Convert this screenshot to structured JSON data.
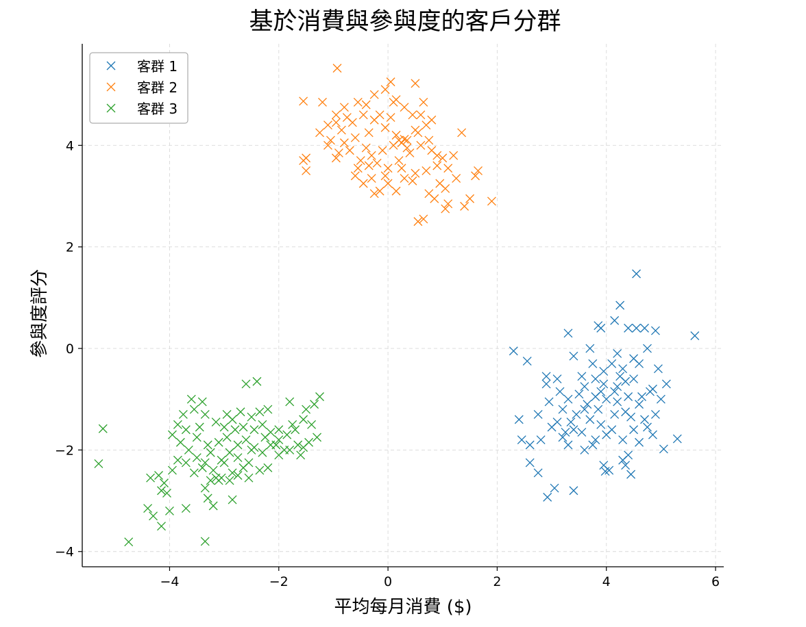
{
  "chart_data": {
    "type": "scatter",
    "title": "基於消費與參與度的客戶分群",
    "xlabel": "平均每月消費 ($)",
    "ylabel": "參與度評分",
    "xlim": [
      -5.6,
      6.15
    ],
    "ylim": [
      -4.3,
      6.0
    ],
    "xticks": [
      -4,
      -2,
      0,
      2,
      4,
      6
    ],
    "yticks": [
      -4,
      -2,
      0,
      2,
      4
    ],
    "grid": true,
    "marker": "x",
    "legend_position": "top-left",
    "series": [
      {
        "name": "客群 1",
        "color": "#1f77b4",
        "points": [
          [
            4.55,
            1.47
          ],
          [
            4.25,
            0.85
          ],
          [
            5.62,
            0.25
          ],
          [
            3.3,
            0.3
          ],
          [
            2.3,
            -0.05
          ],
          [
            2.55,
            -0.25
          ],
          [
            3.1,
            -0.6
          ],
          [
            2.9,
            -0.55
          ],
          [
            3.4,
            -0.15
          ],
          [
            3.7,
            0.0
          ],
          [
            3.9,
            0.4
          ],
          [
            4.15,
            0.55
          ],
          [
            4.4,
            0.4
          ],
          [
            4.7,
            0.4
          ],
          [
            4.9,
            0.35
          ],
          [
            4.75,
            0.0
          ],
          [
            4.5,
            -0.2
          ],
          [
            4.3,
            -0.4
          ],
          [
            4.1,
            -0.3
          ],
          [
            3.95,
            -0.45
          ],
          [
            3.8,
            -0.6
          ],
          [
            3.6,
            -0.75
          ],
          [
            3.5,
            -0.9
          ],
          [
            3.3,
            -1.0
          ],
          [
            3.2,
            -1.2
          ],
          [
            3.45,
            -1.3
          ],
          [
            3.7,
            -1.4
          ],
          [
            3.9,
            -1.5
          ],
          [
            4.1,
            -1.6
          ],
          [
            4.3,
            -1.8
          ],
          [
            4.5,
            -1.6
          ],
          [
            4.7,
            -1.4
          ],
          [
            4.9,
            -1.3
          ],
          [
            5.0,
            -1.0
          ],
          [
            5.1,
            -0.7
          ],
          [
            4.95,
            -0.4
          ],
          [
            4.8,
            -0.85
          ],
          [
            4.6,
            -1.1
          ],
          [
            4.4,
            -0.95
          ],
          [
            4.2,
            -0.75
          ],
          [
            4.0,
            -1.0
          ],
          [
            3.85,
            -1.2
          ],
          [
            3.65,
            -1.1
          ],
          [
            3.4,
            -1.6
          ],
          [
            3.2,
            -1.75
          ],
          [
            3.0,
            -1.55
          ],
          [
            2.8,
            -1.8
          ],
          [
            2.6,
            -1.9
          ],
          [
            2.45,
            -1.8
          ],
          [
            2.4,
            -1.4
          ],
          [
            2.75,
            -1.3
          ],
          [
            2.95,
            -1.05
          ],
          [
            3.15,
            -0.85
          ],
          [
            2.9,
            -0.7
          ],
          [
            2.6,
            -2.25
          ],
          [
            2.75,
            -2.45
          ],
          [
            3.05,
            -2.75
          ],
          [
            2.92,
            -2.93
          ],
          [
            3.4,
            -2.8
          ],
          [
            3.6,
            -2.0
          ],
          [
            3.8,
            -1.8
          ],
          [
            4.0,
            -1.7
          ],
          [
            3.95,
            -2.3
          ],
          [
            4.05,
            -2.4
          ],
          [
            3.98,
            -2.42
          ],
          [
            4.3,
            -2.2
          ],
          [
            4.35,
            -2.3
          ],
          [
            4.45,
            -2.48
          ],
          [
            4.4,
            -2.1
          ],
          [
            4.6,
            -1.85
          ],
          [
            4.85,
            -1.7
          ],
          [
            5.05,
            -1.98
          ],
          [
            5.3,
            -1.78
          ],
          [
            4.65,
            -0.95
          ],
          [
            4.5,
            -0.6
          ],
          [
            4.25,
            -0.55
          ],
          [
            4.2,
            -0.1
          ],
          [
            3.75,
            -0.3
          ],
          [
            3.55,
            -0.55
          ],
          [
            3.35,
            -1.45
          ],
          [
            3.55,
            -1.65
          ],
          [
            3.75,
            -1.9
          ],
          [
            4.15,
            -1.3
          ],
          [
            4.2,
            -1.05
          ],
          [
            4.6,
            -0.3
          ],
          [
            4.35,
            -0.65
          ],
          [
            3.9,
            -0.85
          ],
          [
            3.6,
            -1.2
          ],
          [
            3.8,
            -0.95
          ],
          [
            4.45,
            -1.35
          ],
          [
            4.75,
            -1.55
          ],
          [
            4.85,
            -0.8
          ],
          [
            3.25,
            -1.65
          ],
          [
            3.1,
            -1.45
          ],
          [
            3.3,
            -1.9
          ],
          [
            3.85,
            0.45
          ],
          [
            4.35,
            -1.25
          ],
          [
            4.15,
            -0.85
          ],
          [
            3.95,
            -0.7
          ],
          [
            4.55,
            0.4
          ]
        ]
      },
      {
        "name": "客群 2",
        "color": "#ff7f0e",
        "points": [
          [
            -0.93,
            5.52
          ],
          [
            -1.55,
            4.87
          ],
          [
            -1.2,
            4.85
          ],
          [
            0.5,
            5.22
          ],
          [
            0.05,
            5.25
          ],
          [
            -0.05,
            5.1
          ],
          [
            -0.25,
            5.0
          ],
          [
            -0.55,
            4.85
          ],
          [
            -0.8,
            4.75
          ],
          [
            -0.95,
            4.6
          ],
          [
            -1.1,
            4.4
          ],
          [
            -1.25,
            4.25
          ],
          [
            -1.05,
            4.1
          ],
          [
            -0.85,
            4.3
          ],
          [
            -0.65,
            4.45
          ],
          [
            -0.45,
            4.6
          ],
          [
            -0.25,
            4.5
          ],
          [
            -0.05,
            4.35
          ],
          [
            0.15,
            4.2
          ],
          [
            0.35,
            4.1
          ],
          [
            0.55,
            4.25
          ],
          [
            0.7,
            4.4
          ],
          [
            0.6,
            4.6
          ],
          [
            0.3,
            4.75
          ],
          [
            0.1,
            4.85
          ],
          [
            0.65,
            4.85
          ],
          [
            0.2,
            4.1
          ],
          [
            0.25,
            4.05
          ],
          [
            0.3,
            4.12
          ],
          [
            0.1,
            4.0
          ],
          [
            -0.1,
            3.9
          ],
          [
            -0.3,
            3.8
          ],
          [
            -0.5,
            3.7
          ],
          [
            -0.7,
            3.9
          ],
          [
            -0.9,
            3.85
          ],
          [
            -0.95,
            3.75
          ],
          [
            -1.1,
            4.0
          ],
          [
            -1.55,
            3.7
          ],
          [
            -1.5,
            3.75
          ],
          [
            -1.5,
            3.5
          ],
          [
            -0.6,
            3.4
          ],
          [
            -0.45,
            3.25
          ],
          [
            -0.3,
            3.35
          ],
          [
            -0.15,
            3.1
          ],
          [
            -0.25,
            3.05
          ],
          [
            0.0,
            3.25
          ],
          [
            0.15,
            3.1
          ],
          [
            0.3,
            3.35
          ],
          [
            0.5,
            3.45
          ],
          [
            0.7,
            3.5
          ],
          [
            0.9,
            3.6
          ],
          [
            1.1,
            3.55
          ],
          [
            1.25,
            3.35
          ],
          [
            0.95,
            3.25
          ],
          [
            0.75,
            3.05
          ],
          [
            0.85,
            2.95
          ],
          [
            0.65,
            2.55
          ],
          [
            0.55,
            2.5
          ],
          [
            1.05,
            2.75
          ],
          [
            1.1,
            2.85
          ],
          [
            1.4,
            2.8
          ],
          [
            1.5,
            2.95
          ],
          [
            1.6,
            3.4
          ],
          [
            1.65,
            3.5
          ],
          [
            1.9,
            2.9
          ],
          [
            1.35,
            4.25
          ],
          [
            1.2,
            3.8
          ],
          [
            1.0,
            3.75
          ],
          [
            0.8,
            3.9
          ],
          [
            0.6,
            4.0
          ],
          [
            0.4,
            3.85
          ],
          [
            0.2,
            3.7
          ],
          [
            0.0,
            3.55
          ],
          [
            -0.2,
            3.65
          ],
          [
            -0.4,
            3.95
          ],
          [
            -0.6,
            4.15
          ],
          [
            -0.75,
            4.55
          ],
          [
            -0.35,
            4.25
          ],
          [
            -0.15,
            4.6
          ],
          [
            0.05,
            4.55
          ],
          [
            0.45,
            4.6
          ],
          [
            0.5,
            4.3
          ],
          [
            0.75,
            4.1
          ],
          [
            0.9,
            3.8
          ],
          [
            1.05,
            3.15
          ],
          [
            0.45,
            3.3
          ],
          [
            0.25,
            3.55
          ],
          [
            -0.05,
            3.4
          ],
          [
            -0.35,
            3.6
          ],
          [
            -0.55,
            3.55
          ],
          [
            -0.8,
            4.05
          ],
          [
            -0.95,
            4.45
          ],
          [
            0.15,
            4.9
          ],
          [
            -0.4,
            4.8
          ],
          [
            0.35,
            3.95
          ],
          [
            0.8,
            4.5
          ]
        ]
      },
      {
        "name": "客群 3",
        "color": "#2ca02c",
        "points": [
          [
            -5.22,
            -1.58
          ],
          [
            -5.3,
            -2.27
          ],
          [
            -4.75,
            -3.81
          ],
          [
            -3.35,
            -3.8
          ],
          [
            -4.15,
            -3.5
          ],
          [
            -4.3,
            -3.3
          ],
          [
            -4.4,
            -3.15
          ],
          [
            -4.0,
            -3.2
          ],
          [
            -3.7,
            -3.15
          ],
          [
            -3.2,
            -3.1
          ],
          [
            -3.3,
            -2.95
          ],
          [
            -2.85,
            -2.98
          ],
          [
            -3.35,
            -2.75
          ],
          [
            -3.1,
            -2.6
          ],
          [
            -3.05,
            -2.55
          ],
          [
            -2.9,
            -2.6
          ],
          [
            -2.75,
            -2.5
          ],
          [
            -2.55,
            -2.55
          ],
          [
            -2.35,
            -2.4
          ],
          [
            -2.2,
            -2.35
          ],
          [
            -2.0,
            -2.1
          ],
          [
            -1.8,
            -2.0
          ],
          [
            -1.65,
            -1.9
          ],
          [
            -1.45,
            -1.85
          ],
          [
            -1.3,
            -1.75
          ],
          [
            -1.4,
            -1.5
          ],
          [
            -1.55,
            -1.4
          ],
          [
            -1.75,
            -1.5
          ],
          [
            -2.0,
            -1.6
          ],
          [
            -2.15,
            -1.65
          ],
          [
            -2.3,
            -1.5
          ],
          [
            -2.5,
            -1.35
          ],
          [
            -2.7,
            -1.25
          ],
          [
            -2.85,
            -1.4
          ],
          [
            -3.0,
            -1.55
          ],
          [
            -3.15,
            -1.45
          ],
          [
            -3.35,
            -1.3
          ],
          [
            -3.55,
            -1.2
          ],
          [
            -3.75,
            -1.3
          ],
          [
            -3.85,
            -1.5
          ],
          [
            -3.95,
            -1.7
          ],
          [
            -3.8,
            -1.85
          ],
          [
            -3.65,
            -2.0
          ],
          [
            -3.5,
            -2.15
          ],
          [
            -3.35,
            -2.25
          ],
          [
            -3.2,
            -2.4
          ],
          [
            -3.05,
            -2.2
          ],
          [
            -2.9,
            -2.05
          ],
          [
            -2.75,
            -1.9
          ],
          [
            -2.6,
            -1.8
          ],
          [
            -2.45,
            -1.95
          ],
          [
            -2.3,
            -2.05
          ],
          [
            -2.15,
            -1.9
          ],
          [
            -2.0,
            -1.8
          ],
          [
            -1.85,
            -1.7
          ],
          [
            -1.7,
            -1.6
          ],
          [
            -1.5,
            -1.2
          ],
          [
            -1.35,
            -1.1
          ],
          [
            -1.25,
            -0.95
          ],
          [
            -1.8,
            -1.05
          ],
          [
            -2.2,
            -1.2
          ],
          [
            -2.6,
            -0.7
          ],
          [
            -2.4,
            -0.65
          ],
          [
            -3.6,
            -1.0
          ],
          [
            -3.4,
            -1.05
          ],
          [
            -4.2,
            -2.5
          ],
          [
            -4.35,
            -2.55
          ],
          [
            -4.15,
            -2.8
          ],
          [
            -4.05,
            -2.85
          ],
          [
            -3.95,
            -2.4
          ],
          [
            -4.1,
            -2.65
          ],
          [
            -3.85,
            -2.2
          ],
          [
            -3.7,
            -2.25
          ],
          [
            -3.55,
            -2.45
          ],
          [
            -3.4,
            -2.35
          ],
          [
            -3.25,
            -2.05
          ],
          [
            -3.1,
            -1.85
          ],
          [
            -2.95,
            -1.75
          ],
          [
            -2.8,
            -1.6
          ],
          [
            -2.65,
            -1.55
          ],
          [
            -2.45,
            -1.6
          ],
          [
            -2.25,
            -1.75
          ],
          [
            -2.05,
            -1.9
          ],
          [
            -1.9,
            -2.0
          ],
          [
            -1.6,
            -2.1
          ],
          [
            -1.55,
            -1.95
          ],
          [
            -2.55,
            -2.25
          ],
          [
            -2.65,
            -2.35
          ],
          [
            -2.75,
            -2.15
          ],
          [
            -3.0,
            -2.25
          ],
          [
            -3.25,
            -2.6
          ],
          [
            -3.5,
            -1.75
          ],
          [
            -3.7,
            -1.6
          ],
          [
            -3.45,
            -1.55
          ],
          [
            -2.35,
            -1.25
          ],
          [
            -2.95,
            -1.3
          ],
          [
            -3.15,
            -2.55
          ],
          [
            -2.5,
            -2.0
          ],
          [
            -3.3,
            -1.9
          ],
          [
            -2.85,
            -2.45
          ]
        ]
      }
    ]
  }
}
